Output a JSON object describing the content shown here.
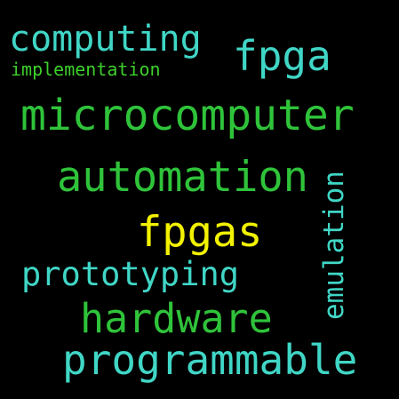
{
  "colors": {
    "background": "#000000",
    "turquoise": "#40d6c6",
    "green": "#2fc33a",
    "lime": "#3dcf2b",
    "yellow": "#f2f200"
  },
  "words": {
    "computing": "computing",
    "fpga": "fpga",
    "implementation": "implementation",
    "microcomputer": "microcomputer",
    "automation": "automation",
    "emulation": "emulation",
    "fpgas": "fpgas",
    "prototyping": "prototyping",
    "hardware": "hardware",
    "programmable": "programmable"
  }
}
